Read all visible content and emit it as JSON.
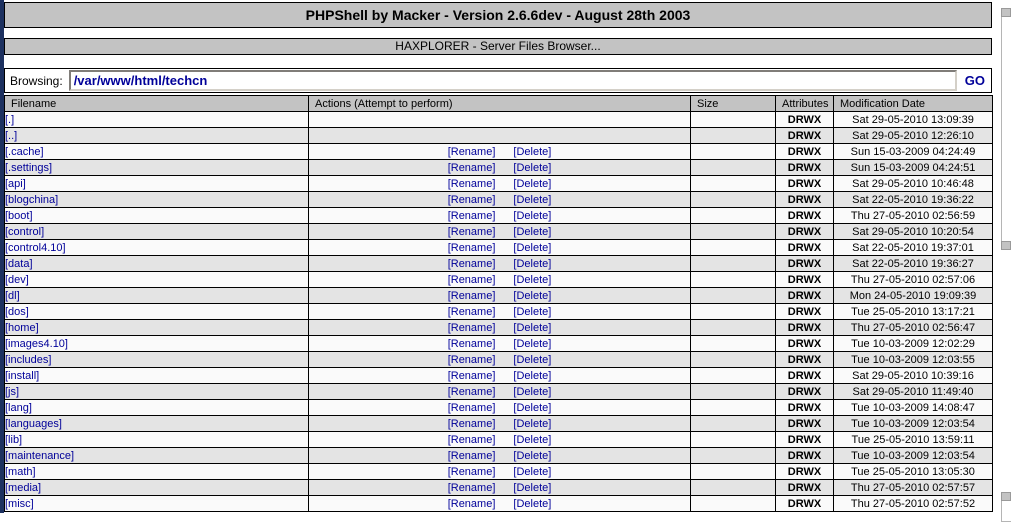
{
  "page": {
    "title_bar": "PHPShell by Macker - Version 2.6.6dev - August 28th 2003",
    "subtitle_bar": "HAXPLORER - Server Files Browser..."
  },
  "browsing": {
    "label": "Browsing:",
    "path_value": "/var/www/html/techcn",
    "go_label": "GO"
  },
  "table": {
    "headers": [
      "Filename",
      "Actions (Attempt to perform)",
      "Size",
      "Attributes",
      "Modification Date"
    ],
    "action_labels": {
      "rename": "[Rename]",
      "delete": "[Delete]"
    },
    "rows": [
      {
        "filename": "[.]",
        "has_actions": false,
        "size": "",
        "attributes": "DRWX",
        "modified": "Sat 29-05-2010 13:09:39"
      },
      {
        "filename": "[..]",
        "has_actions": false,
        "size": "",
        "attributes": "DRWX",
        "modified": "Sat 29-05-2010 12:26:10"
      },
      {
        "filename": "[.cache]",
        "has_actions": true,
        "size": "",
        "attributes": "DRWX",
        "modified": "Sun 15-03-2009 04:24:49"
      },
      {
        "filename": "[.settings]",
        "has_actions": true,
        "size": "",
        "attributes": "DRWX",
        "modified": "Sun 15-03-2009 04:24:51"
      },
      {
        "filename": "[api]",
        "has_actions": true,
        "size": "",
        "attributes": "DRWX",
        "modified": "Sat 29-05-2010 10:46:48"
      },
      {
        "filename": "[blogchina]",
        "has_actions": true,
        "size": "",
        "attributes": "DRWX",
        "modified": "Sat 22-05-2010 19:36:22"
      },
      {
        "filename": "[boot]",
        "has_actions": true,
        "size": "",
        "attributes": "DRWX",
        "modified": "Thu 27-05-2010 02:56:59"
      },
      {
        "filename": "[control]",
        "has_actions": true,
        "size": "",
        "attributes": "DRWX",
        "modified": "Sat 29-05-2010 10:20:54"
      },
      {
        "filename": "[control4.10]",
        "has_actions": true,
        "size": "",
        "attributes": "DRWX",
        "modified": "Sat 22-05-2010 19:37:01"
      },
      {
        "filename": "[data]",
        "has_actions": true,
        "size": "",
        "attributes": "DRWX",
        "modified": "Sat 22-05-2010 19:36:27"
      },
      {
        "filename": "[dev]",
        "has_actions": true,
        "size": "",
        "attributes": "DRWX",
        "modified": "Thu 27-05-2010 02:57:06"
      },
      {
        "filename": "[dl]",
        "has_actions": true,
        "size": "",
        "attributes": "DRWX",
        "modified": "Mon 24-05-2010 19:09:39"
      },
      {
        "filename": "[dos]",
        "has_actions": true,
        "size": "",
        "attributes": "DRWX",
        "modified": "Tue 25-05-2010 13:17:21"
      },
      {
        "filename": "[home]",
        "has_actions": true,
        "size": "",
        "attributes": "DRWX",
        "modified": "Thu 27-05-2010 02:56:47"
      },
      {
        "filename": "[images4.10]",
        "has_actions": true,
        "size": "",
        "attributes": "DRWX",
        "modified": "Tue 10-03-2009 12:02:29"
      },
      {
        "filename": "[includes]",
        "has_actions": true,
        "size": "",
        "attributes": "DRWX",
        "modified": "Tue 10-03-2009 12:03:55"
      },
      {
        "filename": "[install]",
        "has_actions": true,
        "size": "",
        "attributes": "DRWX",
        "modified": "Sat 29-05-2010 10:39:16"
      },
      {
        "filename": "[js]",
        "has_actions": true,
        "size": "",
        "attributes": "DRWX",
        "modified": "Sat 29-05-2010 11:49:40"
      },
      {
        "filename": "[lang]",
        "has_actions": true,
        "size": "",
        "attributes": "DRWX",
        "modified": "Tue 10-03-2009 14:08:47"
      },
      {
        "filename": "[languages]",
        "has_actions": true,
        "size": "",
        "attributes": "DRWX",
        "modified": "Tue 10-03-2009 12:03:54"
      },
      {
        "filename": "[lib]",
        "has_actions": true,
        "size": "",
        "attributes": "DRWX",
        "modified": "Tue 25-05-2010 13:59:11"
      },
      {
        "filename": "[maintenance]",
        "has_actions": true,
        "size": "",
        "attributes": "DRWX",
        "modified": "Tue 10-03-2009 12:03:54"
      },
      {
        "filename": "[math]",
        "has_actions": true,
        "size": "",
        "attributes": "DRWX",
        "modified": "Tue 25-05-2010 13:05:30"
      },
      {
        "filename": "[media]",
        "has_actions": true,
        "size": "",
        "attributes": "DRWX",
        "modified": "Thu 27-05-2010 02:57:57"
      },
      {
        "filename": "[misc]",
        "has_actions": true,
        "size": "",
        "attributes": "DRWX",
        "modified": "Thu 27-05-2010 02:57:52"
      }
    ]
  },
  "colors": {
    "left_strip": "#1d3160",
    "bar_background": "#c3c3c3",
    "row_alternate": "#e4e4e4",
    "row_light": "#fafafa",
    "link": "#000099",
    "border": "#000000"
  }
}
